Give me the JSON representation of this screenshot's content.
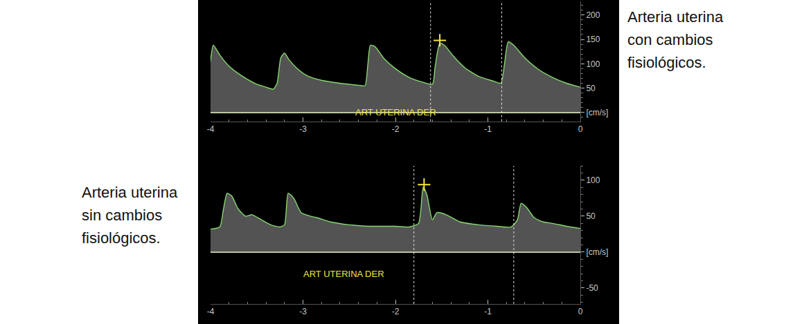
{
  "chart_data": [
    {
      "type": "area",
      "caption": "Arteria uterina con cambios fisiológicos.",
      "annotations": [
        {
          "text": "ART UTERINA DER"
        }
      ],
      "xlim": [
        -4,
        0
      ],
      "xticks": [
        -4,
        -3,
        -2,
        -1,
        0
      ],
      "ylim": [
        -18,
        228
      ],
      "yticks": [
        {
          "value": 0,
          "label": "[cm/s]"
        },
        50,
        100,
        150,
        200
      ],
      "grid": false,
      "x": [
        -4.0,
        -3.97,
        -3.9,
        -3.8,
        -3.7,
        -3.6,
        -3.5,
        -3.4,
        -3.32,
        -3.28,
        -3.24,
        -3.2,
        -3.15,
        -3.05,
        -2.95,
        -2.8,
        -2.6,
        -2.4,
        -2.33,
        -2.3,
        -2.27,
        -2.22,
        -2.12,
        -2.0,
        -1.85,
        -1.7,
        -1.6,
        -1.57,
        -1.52,
        -1.47,
        -1.37,
        -1.25,
        -1.1,
        -0.95,
        -0.86,
        -0.82,
        -0.78,
        -0.72,
        -0.6,
        -0.45,
        -0.3,
        -0.15,
        0.0
      ],
      "series": [
        {
          "color": "#86d86e",
          "values": [
            105,
            138,
            118,
            95,
            80,
            68,
            58,
            52,
            48,
            60,
            112,
            122,
            108,
            88,
            75,
            66,
            60,
            56,
            55,
            95,
            138,
            135,
            110,
            90,
            72,
            62,
            58,
            95,
            142,
            138,
            115,
            92,
            74,
            65,
            60,
            100,
            145,
            138,
            112,
            88,
            72,
            60,
            52
          ]
        }
      ],
      "cycle_lines": [
        -1.62,
        -0.85
      ],
      "peak_mark": {
        "x": -1.52,
        "y": 148,
        "marker": "cross",
        "color": "#f2e640"
      }
    },
    {
      "type": "area",
      "caption": "Arteria uterina sin cambios fisiológicos.",
      "annotations": [
        {
          "text": "ART UTERINA DER"
        }
      ],
      "xlim": [
        -4,
        0
      ],
      "xticks": [
        -4,
        -3,
        -2,
        -1,
        0
      ],
      "ylim": [
        -72,
        120
      ],
      "yticks": [
        -50,
        {
          "value": 0,
          "label": "[cm/s]"
        },
        50,
        100
      ],
      "grid": false,
      "x": [
        -4.0,
        -3.9,
        -3.86,
        -3.82,
        -3.77,
        -3.7,
        -3.62,
        -3.55,
        -3.45,
        -3.35,
        -3.25,
        -3.2,
        -3.16,
        -3.1,
        -3.02,
        -2.92,
        -2.85,
        -2.7,
        -2.5,
        -2.3,
        -2.0,
        -1.85,
        -1.75,
        -1.7,
        -1.66,
        -1.6,
        -1.55,
        -1.45,
        -1.3,
        -1.1,
        -0.9,
        -0.75,
        -0.68,
        -0.64,
        -0.58,
        -0.5,
        -0.4,
        -0.3,
        -0.15,
        0.0
      ],
      "series": [
        {
          "color": "#86d86e",
          "values": [
            32,
            35,
            60,
            82,
            78,
            60,
            50,
            52,
            45,
            38,
            35,
            38,
            82,
            75,
            55,
            50,
            48,
            42,
            38,
            36,
            36,
            35,
            40,
            90,
            80,
            45,
            55,
            52,
            42,
            38,
            36,
            35,
            45,
            68,
            62,
            48,
            42,
            40,
            36,
            33
          ]
        }
      ],
      "cycle_lines": [
        -1.8,
        -0.72
      ],
      "peak_mark": {
        "x": -1.69,
        "y": 94,
        "marker": "cross",
        "color": "#f2e640"
      }
    }
  ]
}
